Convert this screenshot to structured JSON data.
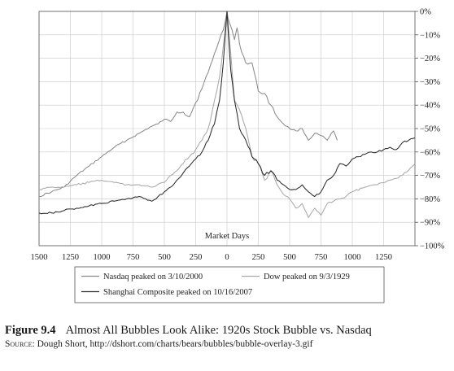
{
  "chart_data": {
    "type": "line",
    "annotation": "Market Days",
    "x_tick_labels": [
      "1500",
      "1250",
      "1000",
      "750",
      "500",
      "250",
      "0",
      "250",
      "500",
      "750",
      "1000",
      "1250"
    ],
    "x_tick_values": [
      -1500,
      -1250,
      -1000,
      -750,
      -500,
      -250,
      0,
      250,
      500,
      750,
      1000,
      1250
    ],
    "xlim": [
      -1500,
      1500
    ],
    "y_tick_labels": [
      "0%",
      "−10%",
      "−20%",
      "−30%",
      "−40%",
      "−50%",
      "−60%",
      "−70%",
      "−80%",
      "−90%",
      "−100%"
    ],
    "y_tick_values": [
      0,
      -10,
      -20,
      -30,
      -40,
      -50,
      -60,
      -70,
      -80,
      -90,
      -100
    ],
    "ylim": [
      -100,
      0
    ],
    "grid": true,
    "y_axis_side": "right",
    "legend_placement": "bottom-center",
    "series": [
      {
        "name": "Nasdaq peaked on 3/10/2000",
        "color": "#8a8a8a",
        "x": [
          -1500,
          -1400,
          -1300,
          -1200,
          -1100,
          -1000,
          -900,
          -800,
          -700,
          -600,
          -550,
          -500,
          -450,
          -400,
          -350,
          -300,
          -250,
          -200,
          -150,
          -100,
          -60,
          -30,
          0,
          20,
          40,
          60,
          80,
          100,
          150,
          200,
          250,
          300,
          350,
          400,
          450,
          500,
          550,
          600,
          650,
          700,
          750,
          800,
          850,
          880
        ],
        "y": [
          -79,
          -77,
          -75,
          -70,
          -66,
          -62,
          -58,
          -55,
          -52,
          -49,
          -48,
          -46,
          -47,
          -43,
          -43,
          -45,
          -39,
          -33,
          -26,
          -18,
          -12,
          -8,
          0,
          -5,
          -8,
          -12,
          -7,
          -14,
          -22,
          -22,
          -34,
          -35,
          -40,
          -45,
          -48,
          -50,
          -51,
          -50,
          -55,
          -52,
          -53,
          -55,
          -51,
          -55
        ]
      },
      {
        "name": "Dow peaked on 9/3/1929",
        "color": "#a8a8a8",
        "x": [
          -1500,
          -1400,
          -1300,
          -1200,
          -1100,
          -1000,
          -900,
          -800,
          -700,
          -600,
          -500,
          -450,
          -400,
          -350,
          -300,
          -250,
          -200,
          -150,
          -100,
          -60,
          -30,
          0,
          30,
          60,
          100,
          150,
          200,
          250,
          300,
          350,
          400,
          450,
          500,
          550,
          600,
          650,
          700,
          750,
          800,
          850,
          900,
          950,
          1000,
          1100,
          1200,
          1300,
          1400,
          1500
        ],
        "y": [
          -76,
          -75,
          -75,
          -74,
          -73,
          -72,
          -73,
          -74,
          -74,
          -75,
          -73,
          -70,
          -68,
          -65,
          -62,
          -59,
          -55,
          -50,
          -38,
          -28,
          -15,
          0,
          -18,
          -38,
          -42,
          -50,
          -62,
          -65,
          -72,
          -68,
          -74,
          -78,
          -80,
          -84,
          -82,
          -88,
          -84,
          -87,
          -82,
          -81,
          -80,
          -79,
          -77,
          -75,
          -74,
          -72,
          -70,
          -65
        ]
      },
      {
        "name": "Shanghai Composite peaked on 10/16/2007",
        "color": "#2b2b2b",
        "x": [
          -1500,
          -1400,
          -1300,
          -1200,
          -1100,
          -1000,
          -900,
          -800,
          -700,
          -650,
          -600,
          -550,
          -500,
          -450,
          -400,
          -350,
          -300,
          -250,
          -200,
          -150,
          -100,
          -60,
          -30,
          0,
          30,
          60,
          100,
          150,
          200,
          250,
          300,
          350,
          400,
          450,
          500,
          550,
          600,
          650,
          700,
          750,
          800,
          850,
          900,
          950,
          1000,
          1050,
          1100,
          1150,
          1200,
          1250,
          1300,
          1350,
          1400,
          1450,
          1500
        ],
        "y": [
          -86,
          -86,
          -85,
          -84,
          -83,
          -82,
          -81,
          -80,
          -79,
          -80,
          -81,
          -79,
          -77,
          -75,
          -72,
          -69,
          -66,
          -63,
          -60,
          -55,
          -48,
          -38,
          -22,
          0,
          -25,
          -38,
          -50,
          -55,
          -62,
          -65,
          -70,
          -68,
          -72,
          -74,
          -76,
          -76,
          -74,
          -77,
          -79,
          -77,
          -72,
          -70,
          -65,
          -66,
          -63,
          -62,
          -61,
          -60,
          -60,
          -59,
          -58,
          -59,
          -56,
          -55,
          -54
        ]
      }
    ]
  },
  "caption": {
    "figure_number": "Figure 9.4",
    "figure_title": "Almost All Bubbles Look Alike: 1920s Stock Bubble vs. Nasdaq",
    "source_label": "Source:",
    "source_text": "Dough Short, http://dshort.com/charts/bears/bubbles/bubble-overlay-3.gif"
  }
}
